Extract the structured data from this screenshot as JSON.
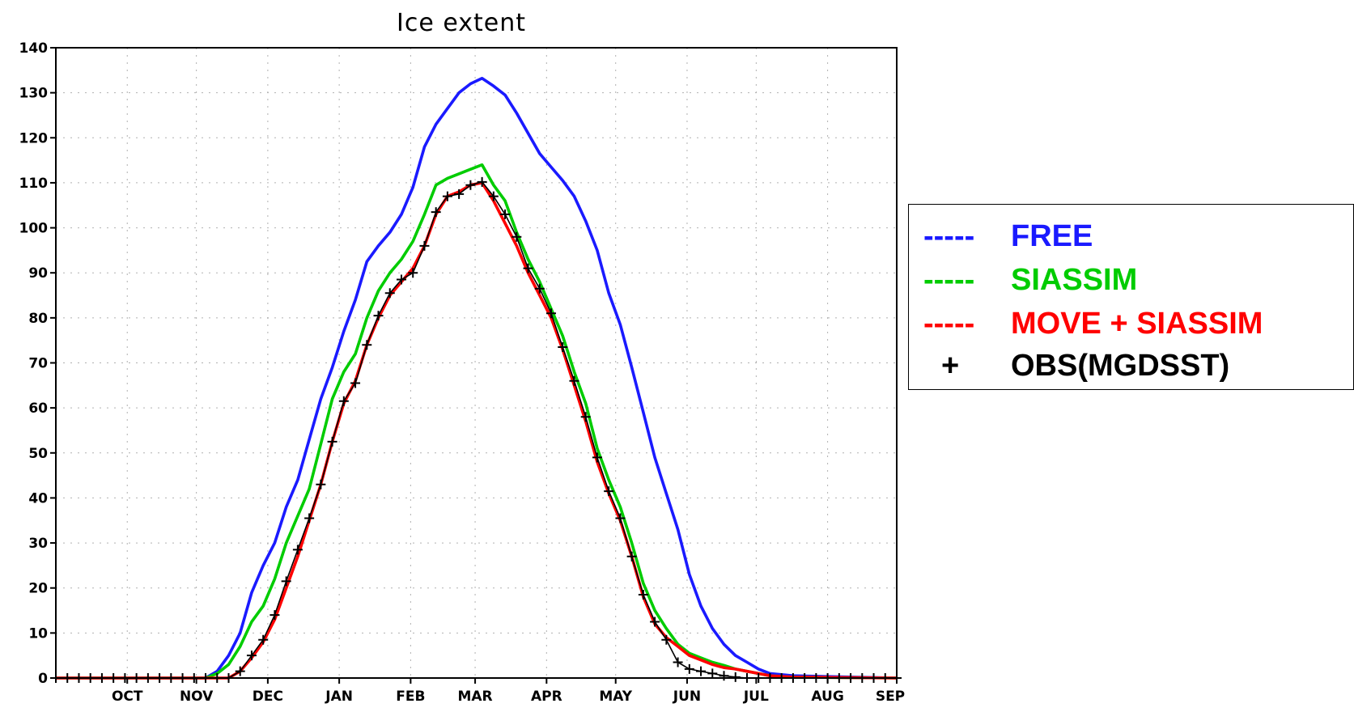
{
  "chart_data": {
    "type": "line",
    "title": "Ice extent",
    "xlabel": "",
    "ylabel": "",
    "ylim": [
      0,
      140
    ],
    "yticks": [
      0,
      10,
      20,
      30,
      40,
      50,
      60,
      70,
      80,
      90,
      100,
      110,
      120,
      130,
      140
    ],
    "xrange": [
      0,
      73
    ],
    "months": [
      {
        "label": "OCT",
        "x": 6.2
      },
      {
        "label": "NOV",
        "x": 12.2
      },
      {
        "label": "DEC",
        "x": 18.4
      },
      {
        "label": "JAN",
        "x": 24.6
      },
      {
        "label": "FEB",
        "x": 30.8
      },
      {
        "label": "MAR",
        "x": 36.4
      },
      {
        "label": "APR",
        "x": 42.6
      },
      {
        "label": "MAY",
        "x": 48.6
      },
      {
        "label": "JUN",
        "x": 54.8
      },
      {
        "label": "JUL",
        "x": 60.8
      },
      {
        "label": "AUG",
        "x": 67.0
      },
      {
        "label": "SEP",
        "x": 73.0
      }
    ],
    "grid": true,
    "legend_position": "right",
    "series": [
      {
        "name": "FREE",
        "color": "#1a1aff",
        "points": [
          [
            0,
            0
          ],
          [
            13,
            0
          ],
          [
            14,
            1.5
          ],
          [
            15,
            5
          ],
          [
            16,
            10
          ],
          [
            17,
            19
          ],
          [
            18,
            25
          ],
          [
            19,
            30
          ],
          [
            20,
            38
          ],
          [
            21,
            44
          ],
          [
            22,
            53
          ],
          [
            23,
            62
          ],
          [
            24,
            69
          ],
          [
            25,
            77
          ],
          [
            26,
            84
          ],
          [
            27,
            92.5
          ],
          [
            28,
            96
          ],
          [
            29,
            99
          ],
          [
            30,
            103
          ],
          [
            31,
            109
          ],
          [
            32,
            118
          ],
          [
            33,
            123
          ],
          [
            34,
            126.5
          ],
          [
            35,
            130
          ],
          [
            36,
            132
          ],
          [
            37,
            133.2
          ],
          [
            38,
            131.5
          ],
          [
            39,
            129.5
          ],
          [
            40,
            125.5
          ],
          [
            41,
            121
          ],
          [
            42,
            116.5
          ],
          [
            43,
            113.5
          ],
          [
            44,
            110.5
          ],
          [
            45,
            107
          ],
          [
            46,
            101.5
          ],
          [
            47,
            95
          ],
          [
            48,
            85.5
          ],
          [
            49,
            78.5
          ],
          [
            50,
            69
          ],
          [
            51,
            59
          ],
          [
            52,
            49
          ],
          [
            53,
            41
          ],
          [
            54,
            33
          ],
          [
            55,
            23
          ],
          [
            56,
            16
          ],
          [
            57,
            11
          ],
          [
            58,
            7.5
          ],
          [
            59,
            5
          ],
          [
            60,
            3.5
          ],
          [
            61,
            2
          ],
          [
            62,
            1
          ],
          [
            64,
            0.5
          ],
          [
            73,
            0
          ]
        ]
      },
      {
        "name": "SIASSIM",
        "color": "#00cc00",
        "points": [
          [
            0,
            0
          ],
          [
            13,
            0
          ],
          [
            14,
            1
          ],
          [
            15,
            3
          ],
          [
            16,
            7
          ],
          [
            17,
            12.5
          ],
          [
            18,
            16
          ],
          [
            19,
            22
          ],
          [
            20,
            30
          ],
          [
            21,
            36
          ],
          [
            22,
            42
          ],
          [
            23,
            52
          ],
          [
            24,
            62
          ],
          [
            25,
            68
          ],
          [
            26,
            72
          ],
          [
            27,
            80
          ],
          [
            28,
            86
          ],
          [
            29,
            90
          ],
          [
            30,
            93
          ],
          [
            31,
            97
          ],
          [
            32,
            103
          ],
          [
            33,
            109.5
          ],
          [
            34,
            111
          ],
          [
            35,
            112
          ],
          [
            36,
            113
          ],
          [
            37,
            114
          ],
          [
            38,
            109.5
          ],
          [
            39,
            106
          ],
          [
            40,
            99
          ],
          [
            41,
            93
          ],
          [
            42,
            88
          ],
          [
            43,
            82
          ],
          [
            44,
            76
          ],
          [
            45,
            68
          ],
          [
            46,
            61
          ],
          [
            47,
            51
          ],
          [
            48,
            44
          ],
          [
            49,
            38
          ],
          [
            50,
            30
          ],
          [
            51,
            21
          ],
          [
            52,
            15
          ],
          [
            53,
            11
          ],
          [
            54,
            7.5
          ],
          [
            55,
            5.5
          ],
          [
            56,
            4.5
          ],
          [
            57,
            3.5
          ],
          [
            58,
            2.8
          ],
          [
            59,
            2
          ],
          [
            60,
            1.5
          ],
          [
            61,
            1
          ],
          [
            62,
            0.5
          ],
          [
            64,
            0.2
          ],
          [
            73,
            0
          ]
        ]
      },
      {
        "name": "MOVE + SIASSIM",
        "color": "#ff0000",
        "points": [
          [
            0,
            0
          ],
          [
            15,
            0
          ],
          [
            16,
            1.5
          ],
          [
            17,
            4.5
          ],
          [
            18,
            8
          ],
          [
            19,
            13
          ],
          [
            20,
            20
          ],
          [
            21,
            27
          ],
          [
            22,
            35
          ],
          [
            23,
            43
          ],
          [
            24,
            52.5
          ],
          [
            25,
            61
          ],
          [
            26,
            66
          ],
          [
            27,
            74
          ],
          [
            28,
            80
          ],
          [
            29,
            85
          ],
          [
            30,
            88
          ],
          [
            31,
            91
          ],
          [
            32,
            96
          ],
          [
            33,
            103
          ],
          [
            34,
            107
          ],
          [
            35,
            108
          ],
          [
            36,
            109.5
          ],
          [
            37,
            110
          ],
          [
            38,
            106
          ],
          [
            39,
            101
          ],
          [
            40,
            96
          ],
          [
            41,
            90
          ],
          [
            42,
            85
          ],
          [
            43,
            80
          ],
          [
            44,
            73
          ],
          [
            45,
            65
          ],
          [
            46,
            57
          ],
          [
            47,
            48
          ],
          [
            48,
            41
          ],
          [
            49,
            35
          ],
          [
            50,
            27
          ],
          [
            51,
            18
          ],
          [
            52,
            12
          ],
          [
            53,
            9
          ],
          [
            54,
            7
          ],
          [
            55,
            5
          ],
          [
            56,
            4
          ],
          [
            57,
            3
          ],
          [
            58,
            2.3
          ],
          [
            59,
            2
          ],
          [
            60,
            1.5
          ],
          [
            61,
            1
          ],
          [
            62,
            0.5
          ],
          [
            64,
            0.2
          ],
          [
            73,
            0
          ]
        ]
      },
      {
        "name": "OBS(MGDSST)",
        "color": "#000000",
        "marker": "+",
        "points": [
          [
            0,
            0
          ],
          [
            1,
            0
          ],
          [
            2,
            0
          ],
          [
            3,
            0
          ],
          [
            4,
            0
          ],
          [
            5,
            0
          ],
          [
            6,
            0
          ],
          [
            7,
            0
          ],
          [
            8,
            0
          ],
          [
            9,
            0
          ],
          [
            10,
            0
          ],
          [
            11,
            0
          ],
          [
            12,
            0
          ],
          [
            13,
            0
          ],
          [
            14,
            0
          ],
          [
            15,
            0
          ],
          [
            16,
            1.5
          ],
          [
            17,
            5
          ],
          [
            18,
            8.5
          ],
          [
            19,
            14
          ],
          [
            20,
            21.5
          ],
          [
            21,
            28.5
          ],
          [
            22,
            35.5
          ],
          [
            23,
            43
          ],
          [
            24,
            52.5
          ],
          [
            25,
            61.5
          ],
          [
            26,
            65.5
          ],
          [
            27,
            74
          ],
          [
            28,
            80.5
          ],
          [
            29,
            85.5
          ],
          [
            30,
            88.5
          ],
          [
            31,
            90
          ],
          [
            32,
            96
          ],
          [
            33,
            103.5
          ],
          [
            34,
            107
          ],
          [
            35,
            107.5
          ],
          [
            36,
            109.5
          ],
          [
            37,
            110.2
          ],
          [
            38,
            107
          ],
          [
            39,
            103
          ],
          [
            40,
            98
          ],
          [
            41,
            91
          ],
          [
            42,
            86.5
          ],
          [
            43,
            81
          ],
          [
            44,
            73.5
          ],
          [
            45,
            66
          ],
          [
            46,
            58
          ],
          [
            47,
            49
          ],
          [
            48,
            41.5
          ],
          [
            49,
            35.5
          ],
          [
            50,
            27
          ],
          [
            51,
            18.5
          ],
          [
            52,
            12.5
          ],
          [
            53,
            8.5
          ],
          [
            54,
            3.5
          ],
          [
            55,
            2
          ],
          [
            56,
            1.5
          ],
          [
            57,
            1
          ],
          [
            58,
            0.5
          ],
          [
            59,
            0.2
          ],
          [
            60,
            0
          ],
          [
            61,
            0
          ],
          [
            62,
            0
          ],
          [
            63,
            0
          ],
          [
            64,
            0
          ],
          [
            65,
            0
          ],
          [
            66,
            0
          ],
          [
            67,
            0
          ],
          [
            68,
            0
          ],
          [
            69,
            0
          ],
          [
            70,
            0
          ],
          [
            71,
            0
          ],
          [
            72,
            0
          ],
          [
            73,
            0
          ]
        ]
      }
    ]
  },
  "legend": {
    "entries": [
      {
        "marker": "-----",
        "label": "FREE",
        "color": "#1a1aff"
      },
      {
        "marker": "-----",
        "label": "SIASSIM",
        "color": "#00cc00"
      },
      {
        "marker": "-----",
        "label": "MOVE + SIASSIM",
        "color": "#ff0000"
      },
      {
        "marker": "+",
        "label": "OBS(MGDSST)",
        "color": "#000000"
      }
    ]
  }
}
